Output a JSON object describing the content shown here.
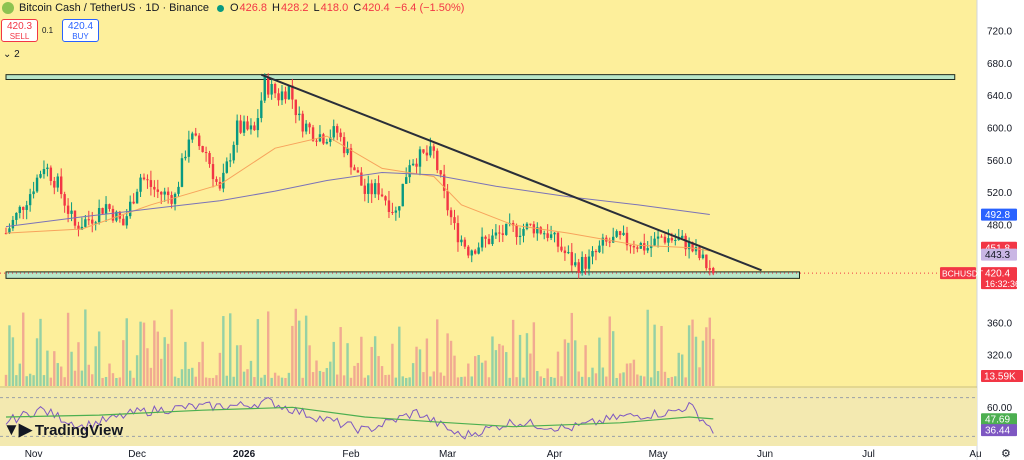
{
  "header": {
    "symbol": "Bitcoin Cash / TetherUS · 1D · Binance",
    "open_key": "O",
    "open": "426.8",
    "high_key": "H",
    "high": "428.2",
    "low_key": "L",
    "low": "418.0",
    "close_key": "C",
    "close": "420.4",
    "change": "−6.4 (−1.50%)"
  },
  "trade": {
    "sell_price": "420.3",
    "sell_label": "SELL",
    "spread": "0.1",
    "buy_price": "420.4",
    "buy_label": "BUY"
  },
  "indicators_toggle": "2",
  "brand": "TradingView",
  "colors": {
    "background": "#fdef9b",
    "up": "#089981",
    "down": "#f23645",
    "zone_fill": "#b8e6c8",
    "trendline": "#2a2e39",
    "ma_fast": "#f7a35c",
    "ma_slow": "#7b73b8",
    "rsi_line": "#7e57c2",
    "rsi_ma": "#4caf50"
  },
  "chart_data": [
    {
      "type": "candlestick",
      "symbol_label": "BCHUSDT",
      "interval": "1D",
      "x_start": "2025-10-24",
      "x_end": "2026-05-17",
      "x_ticks": [
        {
          "date": "2025-11-01",
          "label": "Nov"
        },
        {
          "date": "2025-12-01",
          "label": "Dec"
        },
        {
          "date": "2026-01-01",
          "label": "2026"
        },
        {
          "date": "2026-02-01",
          "label": "Feb"
        },
        {
          "date": "2026-03-01",
          "label": "Mar"
        },
        {
          "date": "2026-04-01",
          "label": "Apr"
        },
        {
          "date": "2026-05-01",
          "label": "May"
        },
        {
          "date": "2026-06-01",
          "label": "Jun"
        },
        {
          "date": "2026-07-01",
          "label": "Jul"
        },
        {
          "date": "2026-08-01",
          "label": "Au"
        }
      ],
      "y_ticks": [
        720,
        680,
        640,
        600,
        560,
        520,
        480,
        360,
        320
      ],
      "y_tick_labels": [
        "720.0",
        "680.0",
        "640.0",
        "600.0",
        "560.0",
        "520.0",
        "480.0",
        "360.0",
        "320.0"
      ],
      "ylim": [
        300,
        760
      ],
      "price_labels": [
        {
          "value": 492.8,
          "text": "492.8",
          "color": "#2962ff"
        },
        {
          "value": 451.8,
          "text": "451.8",
          "color": "#f23645"
        },
        {
          "value": 443.3,
          "text": "443.3",
          "color": "#c9b6e4"
        },
        {
          "value": 420.4,
          "text": "420.4",
          "color": "#f23645"
        }
      ],
      "countdown": "16:32:36",
      "zones": [
        {
          "x_start": "2025-10-24",
          "x_end": "2026-07-26",
          "y_low": 660,
          "y_high": 666
        },
        {
          "x_start": "2025-10-24",
          "x_end": "2026-06-11",
          "y_low": 414,
          "y_high": 422
        }
      ],
      "trendline": {
        "from": {
          "date": "2026-01-06",
          "value": 666
        },
        "to": {
          "date": "2026-05-31",
          "value": 424
        }
      },
      "ma_fast_points": [
        [
          "2025-10-24",
          470
        ],
        [
          "2025-11-15",
          475
        ],
        [
          "2025-12-05",
          505
        ],
        [
          "2025-12-25",
          530
        ],
        [
          "2026-01-10",
          575
        ],
        [
          "2026-01-25",
          590
        ],
        [
          "2026-02-10",
          550
        ],
        [
          "2026-02-25",
          540
        ],
        [
          "2026-03-05",
          505
        ],
        [
          "2026-03-20",
          480
        ],
        [
          "2026-04-05",
          470
        ],
        [
          "2026-04-25",
          455
        ],
        [
          "2026-05-10",
          452
        ],
        [
          "2026-05-16",
          448
        ]
      ],
      "ma_slow_points": [
        [
          "2025-10-24",
          478
        ],
        [
          "2025-11-15",
          490
        ],
        [
          "2025-12-05",
          500
        ],
        [
          "2025-12-25",
          510
        ],
        [
          "2026-01-10",
          522
        ],
        [
          "2026-01-25",
          535
        ],
        [
          "2026-02-10",
          545
        ],
        [
          "2026-02-25",
          542
        ],
        [
          "2026-03-15",
          528
        ],
        [
          "2026-04-05",
          515
        ],
        [
          "2026-04-25",
          505
        ],
        [
          "2026-05-16",
          493
        ]
      ],
      "price_path": [
        [
          "2025-10-24",
          470
        ],
        [
          "2025-10-31",
          520
        ],
        [
          "2025-11-04",
          555
        ],
        [
          "2025-11-08",
          530
        ],
        [
          "2025-11-13",
          478
        ],
        [
          "2025-11-18",
          490
        ],
        [
          "2025-11-22",
          505
        ],
        [
          "2025-11-27",
          480
        ],
        [
          "2025-12-02",
          540
        ],
        [
          "2025-12-07",
          520
        ],
        [
          "2025-12-12",
          515
        ],
        [
          "2025-12-16",
          590
        ],
        [
          "2025-12-21",
          570
        ],
        [
          "2025-12-25",
          520
        ],
        [
          "2025-12-30",
          600
        ],
        [
          "2026-01-04",
          595
        ],
        [
          "2026-01-07",
          655
        ],
        [
          "2026-01-11",
          640
        ],
        [
          "2026-01-14",
          650
        ],
        [
          "2026-01-17",
          610
        ],
        [
          "2026-01-21",
          595
        ],
        [
          "2026-01-24",
          590
        ],
        [
          "2026-01-28",
          595
        ],
        [
          "2026-02-01",
          560
        ],
        [
          "2026-02-05",
          520
        ],
        [
          "2026-02-09",
          525
        ],
        [
          "2026-02-14",
          495
        ],
        [
          "2026-02-18",
          560
        ],
        [
          "2026-02-22",
          565
        ],
        [
          "2026-02-25",
          568
        ],
        [
          "2026-02-28",
          515
        ],
        [
          "2026-03-03",
          475
        ],
        [
          "2026-03-07",
          450
        ],
        [
          "2026-03-12",
          460
        ],
        [
          "2026-03-17",
          470
        ],
        [
          "2026-03-22",
          475
        ],
        [
          "2026-03-26",
          478
        ],
        [
          "2026-03-30",
          470
        ],
        [
          "2026-04-03",
          450
        ],
        [
          "2026-04-07",
          430
        ],
        [
          "2026-04-11",
          435
        ],
        [
          "2026-04-15",
          455
        ],
        [
          "2026-04-19",
          462
        ],
        [
          "2026-04-24",
          458
        ],
        [
          "2026-04-28",
          452
        ],
        [
          "2026-05-02",
          465
        ],
        [
          "2026-05-06",
          462
        ],
        [
          "2026-05-09",
          458
        ],
        [
          "2026-05-13",
          440
        ],
        [
          "2026-05-17",
          420
        ]
      ],
      "ohlc_last": {
        "open": 426.8,
        "high": 428.2,
        "low": 418.0,
        "close": 420.4
      }
    },
    {
      "type": "bar",
      "name": "Volume",
      "last_value_label": "13.59K",
      "color_up": "#089981",
      "color_down": "#f23645",
      "ylim": [
        0,
        100
      ]
    },
    {
      "type": "line",
      "name": "RSI",
      "ylim": [
        20,
        80
      ],
      "y_ticks": [
        60
      ],
      "y_tick_labels": [
        "60.00"
      ],
      "value_labels": [
        {
          "value": 47.69,
          "text": "47.69",
          "color": "#4caf50"
        },
        {
          "value": 36.44,
          "text": "36.44",
          "color": "#7e57c2"
        }
      ],
      "rsi_points": [
        [
          "2025-10-24",
          45
        ],
        [
          "2025-11-03",
          58
        ],
        [
          "2025-11-15",
          40
        ],
        [
          "2025-12-01",
          55
        ],
        [
          "2025-12-15",
          60
        ],
        [
          "2026-01-01",
          62
        ],
        [
          "2026-01-08",
          66
        ],
        [
          "2026-01-20",
          52
        ],
        [
          "2026-02-05",
          36
        ],
        [
          "2026-02-20",
          55
        ],
        [
          "2026-03-05",
          30
        ],
        [
          "2026-03-20",
          45
        ],
        [
          "2026-04-05",
          38
        ],
        [
          "2026-04-20",
          50
        ],
        [
          "2026-05-05",
          55
        ],
        [
          "2026-05-10",
          62
        ],
        [
          "2026-05-17",
          36
        ]
      ],
      "rsi_ma_points": [
        [
          "2025-10-24",
          50
        ],
        [
          "2025-11-20",
          52
        ],
        [
          "2025-12-20",
          57
        ],
        [
          "2026-01-15",
          60
        ],
        [
          "2026-02-05",
          50
        ],
        [
          "2026-02-25",
          45
        ],
        [
          "2026-03-20",
          40
        ],
        [
          "2026-04-20",
          44
        ],
        [
          "2026-05-10",
          50
        ],
        [
          "2026-05-17",
          48
        ]
      ]
    }
  ]
}
